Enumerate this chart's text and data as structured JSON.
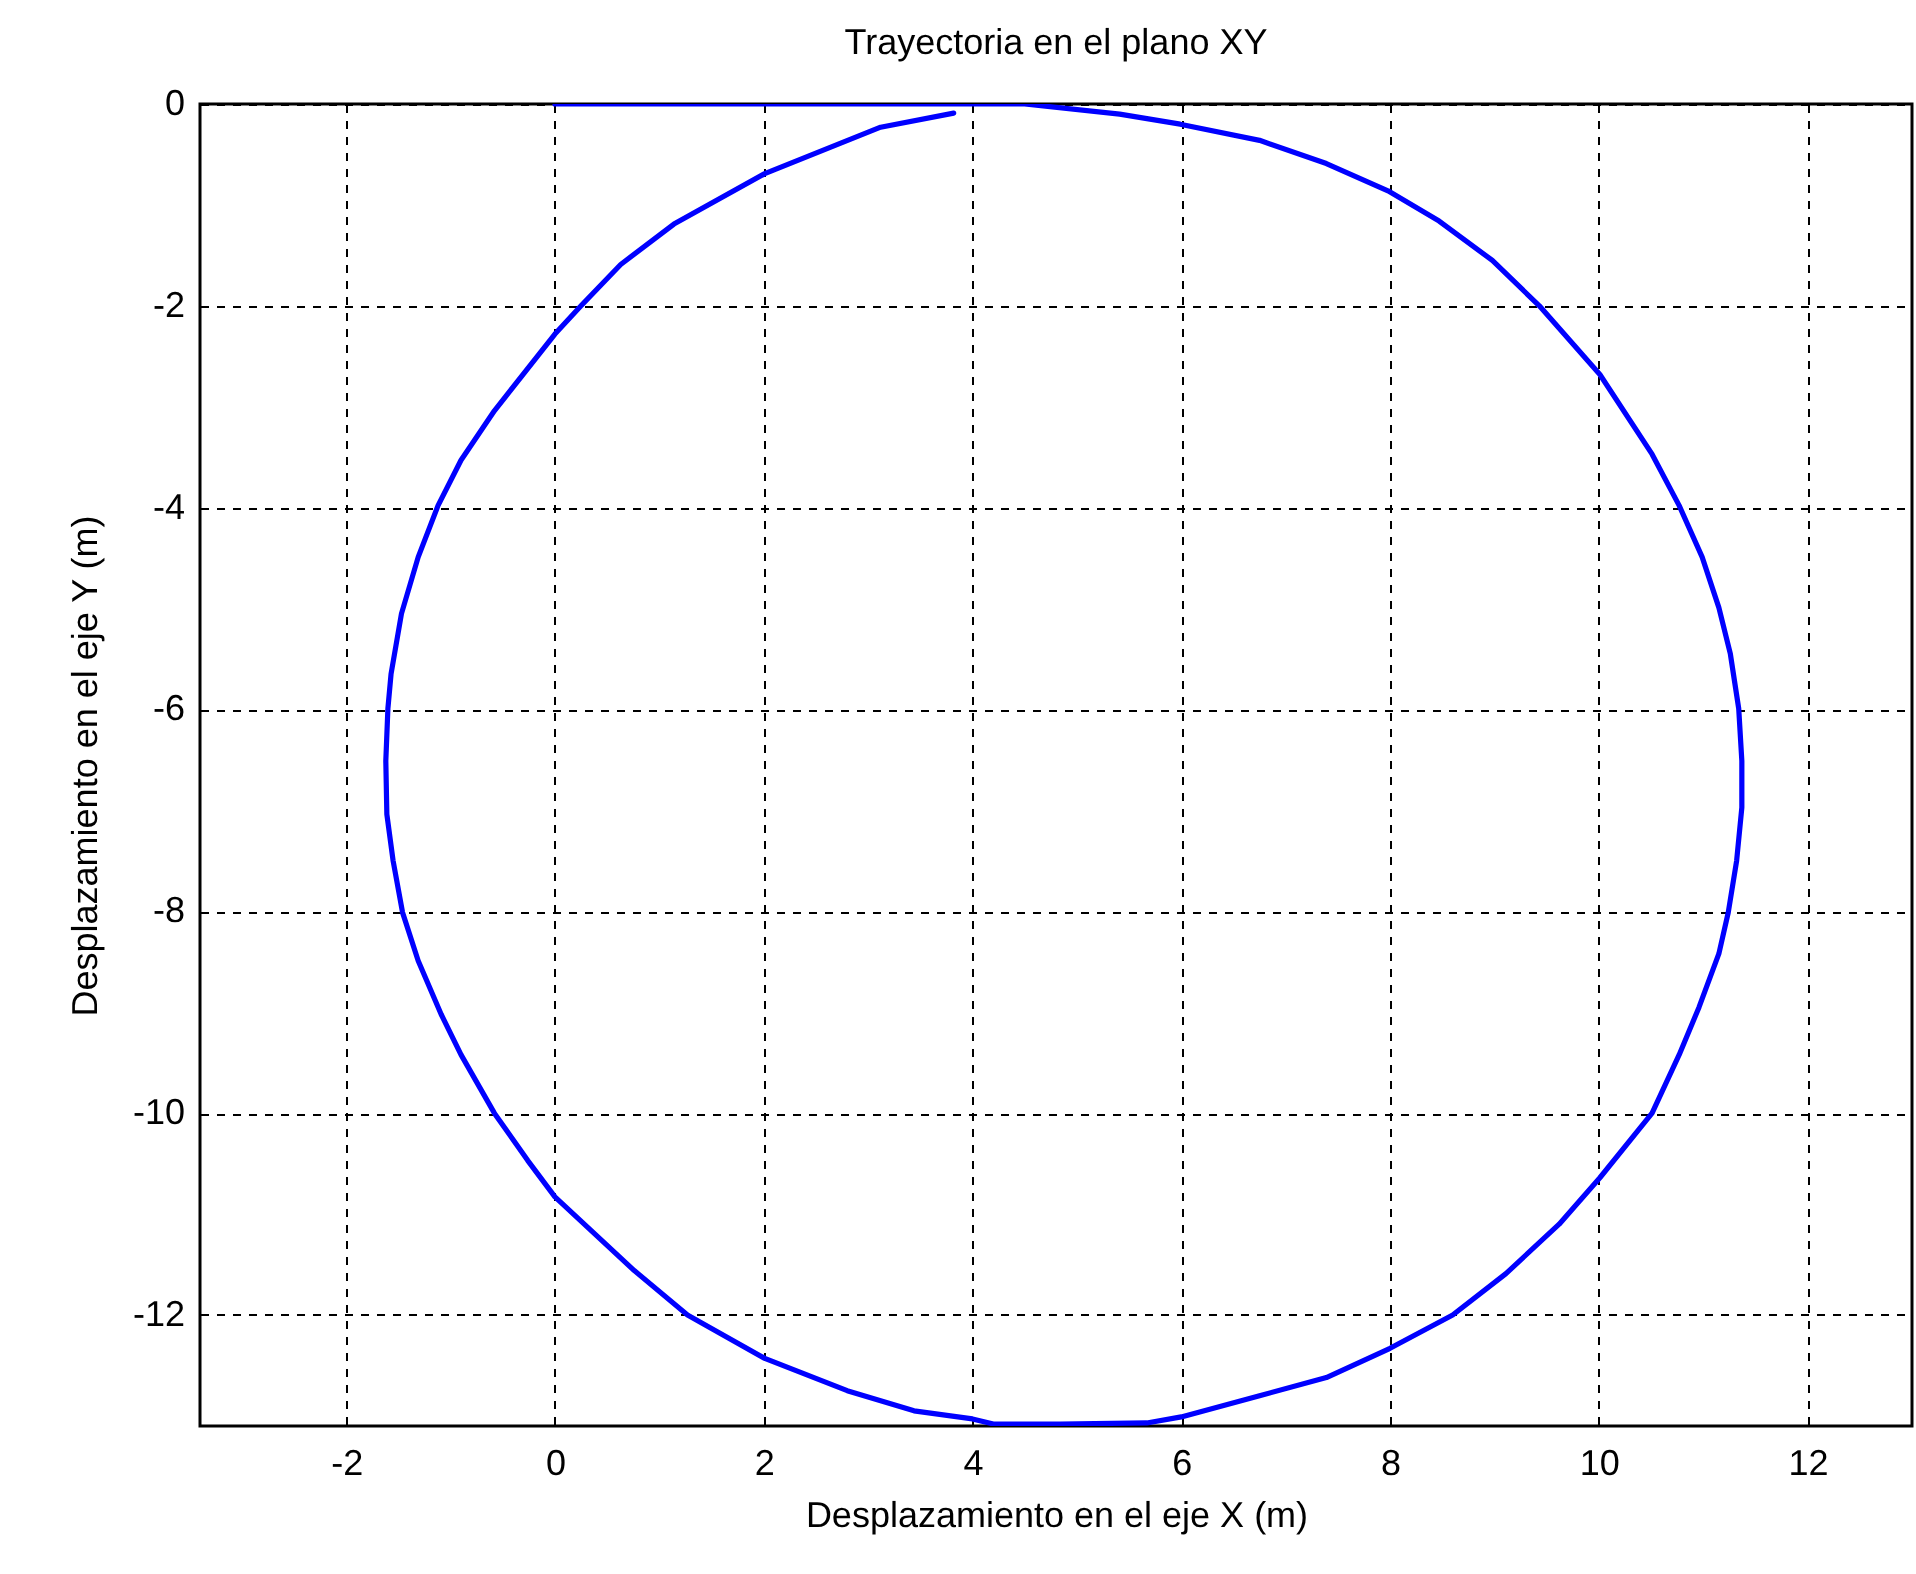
{
  "chart_data": {
    "type": "line",
    "title": "Trayectoria en el plano XY",
    "xlabel": "Desplazamiento en el eje X (m)",
    "ylabel": "Desplazamiento en el eje Y (m)",
    "series": [
      {
        "color": "#0000ff",
        "x": [
          0,
          4.5,
          5.41,
          5.99,
          6.75,
          7.39,
          7.98,
          8.47,
          8.98,
          9.43,
          10.01,
          10.51,
          10.77,
          10.99,
          11.15,
          11.26,
          11.34,
          11.37,
          11.37,
          11.32,
          11.24,
          11.15,
          10.96,
          10.77,
          10.51,
          10.01,
          9.62,
          9.11,
          8.6,
          8.0,
          7.39,
          6.75,
          6.0,
          5.67,
          4.84,
          4.2,
          4.0,
          3.44,
          2.8,
          2.01,
          1.27,
          0.76,
          0.0,
          -0.26,
          -0.58,
          -0.9,
          -1.09,
          -1.31,
          -1.46,
          -1.55,
          -1.61,
          -1.62,
          -1.6,
          -1.57,
          -1.47,
          -1.31,
          -1.12,
          -0.9,
          -0.58,
          0.0,
          0.25,
          0.63,
          1.14,
          2.01,
          3.12,
          3.82
        ],
        "values": [
          0,
          0,
          -0.1,
          -0.2,
          -0.36,
          -0.59,
          -0.86,
          -1.16,
          -1.55,
          -2.0,
          -2.68,
          -3.47,
          -3.98,
          -4.49,
          -4.99,
          -5.45,
          -5.99,
          -6.51,
          -6.97,
          -7.5,
          -8.01,
          -8.42,
          -8.95,
          -9.42,
          -10.0,
          -10.64,
          -11.1,
          -11.59,
          -12.0,
          -12.33,
          -12.62,
          -12.8,
          -13.01,
          -13.07,
          -13.08,
          -13.08,
          -13.03,
          -12.95,
          -12.75,
          -12.43,
          -12.0,
          -11.56,
          -10.83,
          -10.47,
          -10.0,
          -9.42,
          -9.02,
          -8.49,
          -8.01,
          -7.5,
          -7.04,
          -6.51,
          -5.99,
          -5.65,
          -5.05,
          -4.49,
          -3.98,
          -3.53,
          -3.04,
          -2.28,
          -2.0,
          -1.59,
          -1.19,
          -0.69,
          -0.23,
          -0.09
        ]
      }
    ],
    "xlim": [
      -3.4,
      13
    ],
    "ylim": [
      -13.1,
      0
    ],
    "xticks": [
      -2,
      0,
      2,
      4,
      6,
      8,
      10,
      12
    ],
    "yticks": [
      -12,
      -10,
      -8,
      -6,
      -4,
      -2,
      0
    ],
    "grid": true
  }
}
